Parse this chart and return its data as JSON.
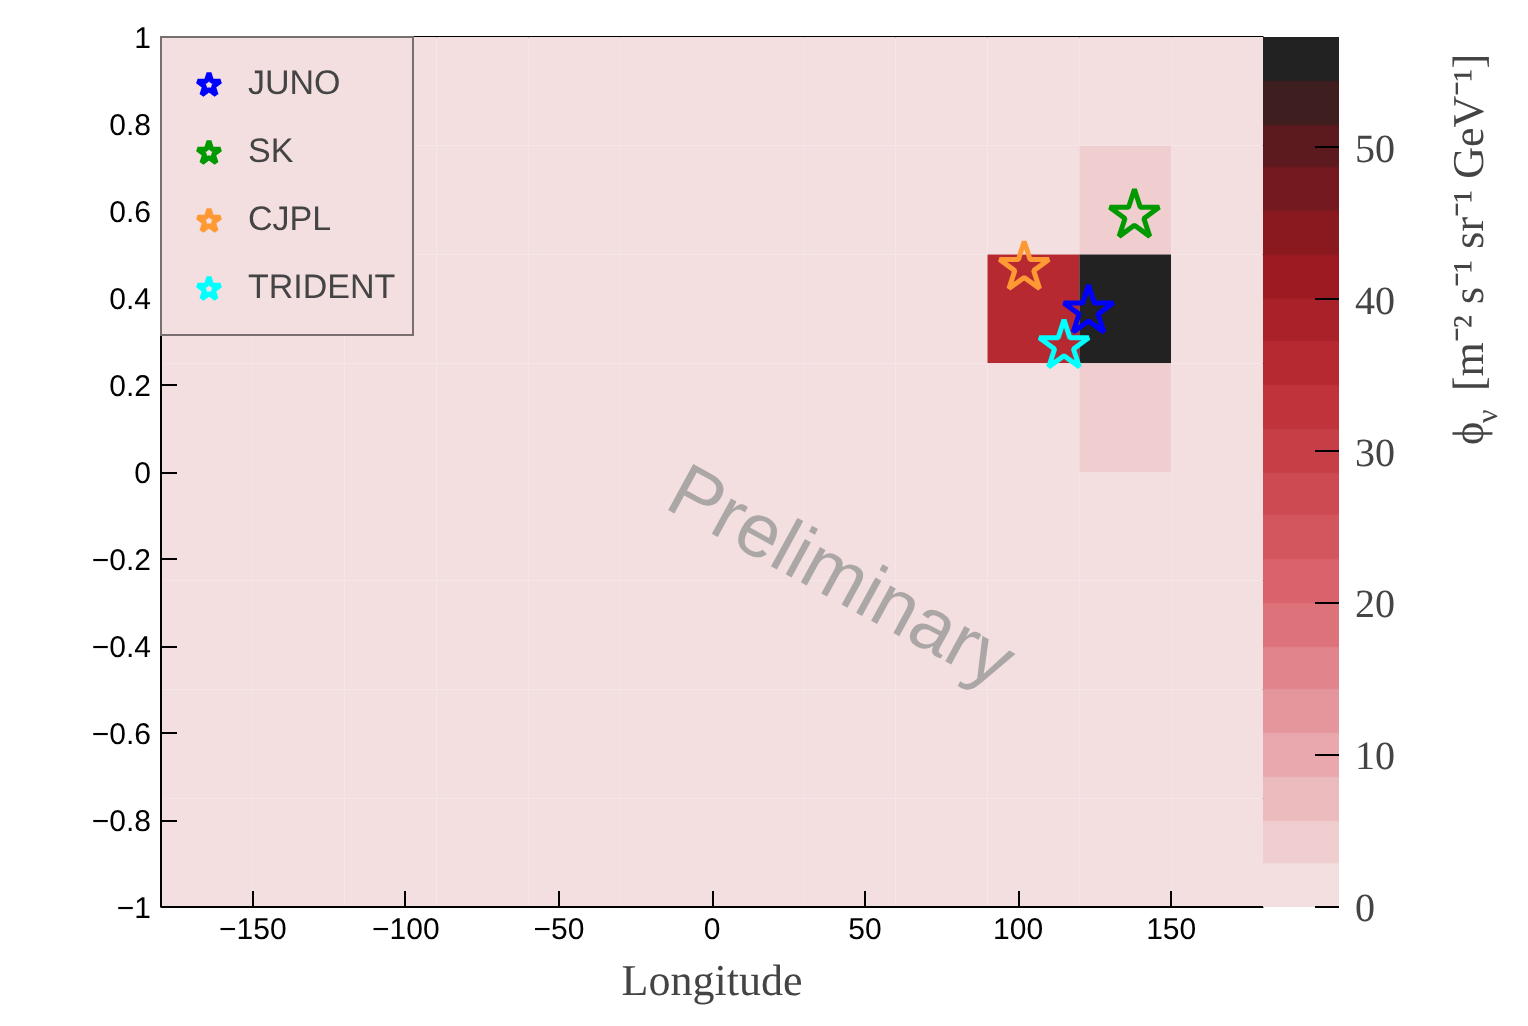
{
  "chart_data": {
    "type": "heatmap",
    "xlabel": "Longitude",
    "clabel": "ϕ$_{ν}$ [m⁻² s⁻¹ sr⁻¹ GeV⁻¹]",
    "x": [
      -165,
      -135,
      -105,
      -75,
      -45,
      -15,
      15,
      45,
      75,
      105,
      135,
      165
    ],
    "y": [
      0.875,
      0.625,
      0.375,
      0.125,
      -0.125,
      -0.375,
      -0.625,
      -0.875
    ],
    "cells": [
      [
        1,
        1,
        1,
        1,
        1,
        1,
        1,
        1,
        1,
        1,
        1,
        1
      ],
      [
        1,
        1,
        1,
        1,
        1,
        1,
        1,
        1,
        1,
        1,
        4,
        1
      ],
      [
        1,
        1,
        1,
        1,
        1,
        1,
        1,
        1,
        1,
        37,
        57,
        1
      ],
      [
        1,
        1,
        1,
        1,
        1,
        1,
        1,
        1,
        1,
        1,
        4,
        1
      ],
      [
        1,
        1,
        1,
        1,
        1,
        1,
        1,
        1,
        1,
        1,
        1,
        1
      ],
      [
        1,
        1,
        1,
        1,
        1,
        1,
        1,
        1,
        1,
        1,
        1,
        1
      ],
      [
        1,
        1,
        1,
        1,
        1,
        1,
        1,
        1,
        1,
        1,
        1,
        1
      ],
      [
        1,
        1,
        1,
        1,
        1,
        1,
        1,
        1,
        1,
        1,
        1,
        1
      ]
    ],
    "xlim": [
      -180,
      180
    ],
    "xticks": [
      -150,
      -100,
      -50,
      0,
      50,
      100,
      150
    ],
    "ylim": [
      -1,
      1
    ],
    "yticks": [
      -1,
      -0.8,
      -0.6,
      -0.4,
      -0.2,
      0,
      0.2,
      0.4,
      0.6,
      0.8,
      1
    ],
    "clim": [
      0,
      57.3
    ],
    "cticks": [
      0,
      10,
      20,
      30,
      40,
      50
    ],
    "series": [
      {
        "type": "scatter",
        "name": "JUNO",
        "color": "#0000ff",
        "x": [
          123
        ],
        "values": [
          0.37
        ]
      },
      {
        "type": "scatter",
        "name": "SK",
        "color": "#009900",
        "x": [
          138
        ],
        "values": [
          0.59
        ]
      },
      {
        "type": "scatter",
        "name": "CJPL",
        "color": "#ff9933",
        "x": [
          102
        ],
        "values": [
          0.47
        ]
      },
      {
        "type": "scatter",
        "name": "TRIDENT",
        "color": "#00ffff",
        "x": [
          115
        ],
        "values": [
          0.29
        ]
      }
    ],
    "marker": "star",
    "legend": "top left",
    "grid": false,
    "annotations": [
      "Preliminary"
    ]
  }
}
